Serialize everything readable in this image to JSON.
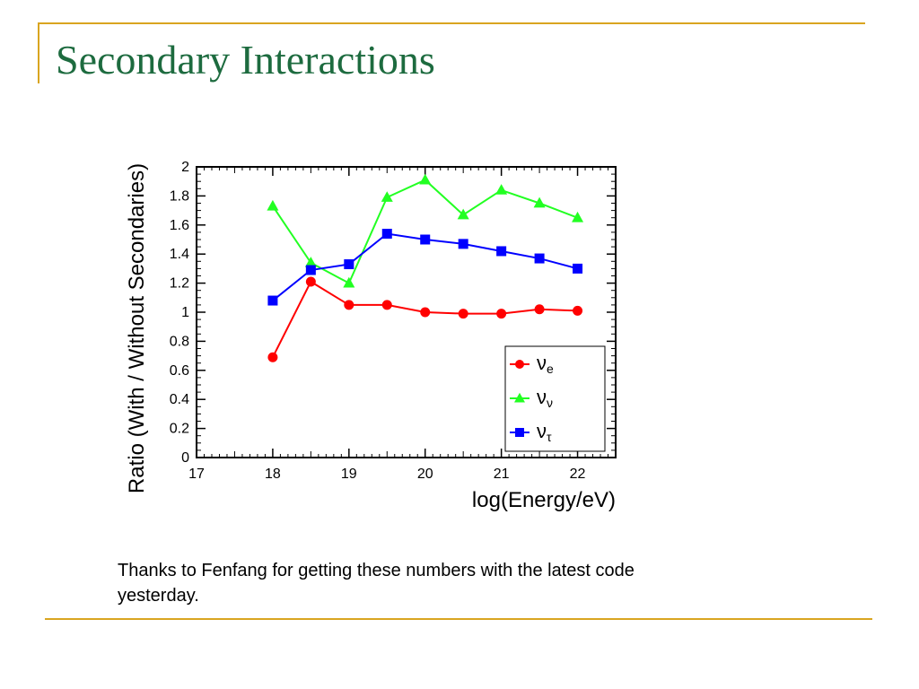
{
  "slide": {
    "title": "Secondary Interactions",
    "caption": "Thanks to Fenfang for getting these numbers with the latest code yesterday."
  },
  "colors": {
    "title": "#1d6b3f",
    "rule": "#d9a520",
    "nu_e": "#ff0000",
    "nu_mu": "#22ff22",
    "nu_tau": "#0000ff"
  },
  "chart_data": {
    "type": "line",
    "title": "",
    "xlabel": "log(Energy/eV)",
    "ylabel": "Ratio (With / Without Secondaries)",
    "xlim": [
      17,
      22.5
    ],
    "ylim": [
      0,
      2
    ],
    "xticks": [
      17,
      18,
      19,
      20,
      21,
      22
    ],
    "yticks": [
      0,
      0.2,
      0.4,
      0.6,
      0.8,
      1,
      1.2,
      1.4,
      1.6,
      1.8,
      2
    ],
    "grid": false,
    "legend_position": "bottom-right",
    "x": [
      18,
      18.5,
      19,
      19.5,
      20,
      20.5,
      21,
      21.5,
      22
    ],
    "series": [
      {
        "name": "ν_e",
        "symbol": "ν",
        "subscript": "e",
        "marker": "circle",
        "color": "#ff0000",
        "values": [
          0.69,
          1.21,
          1.05,
          1.05,
          1.0,
          0.99,
          0.99,
          1.02,
          1.01
        ]
      },
      {
        "name": "ν_ν",
        "symbol": "ν",
        "subscript": "ν",
        "marker": "triangle-down",
        "color": "#22ff22",
        "values": [
          1.73,
          1.34,
          1.2,
          1.79,
          1.91,
          1.67,
          1.84,
          1.75,
          1.65
        ]
      },
      {
        "name": "ν_τ",
        "symbol": "ν",
        "subscript": "τ",
        "marker": "square",
        "color": "#0000ff",
        "values": [
          1.08,
          1.29,
          1.33,
          1.54,
          1.5,
          1.47,
          1.42,
          1.37,
          1.3
        ]
      }
    ]
  }
}
